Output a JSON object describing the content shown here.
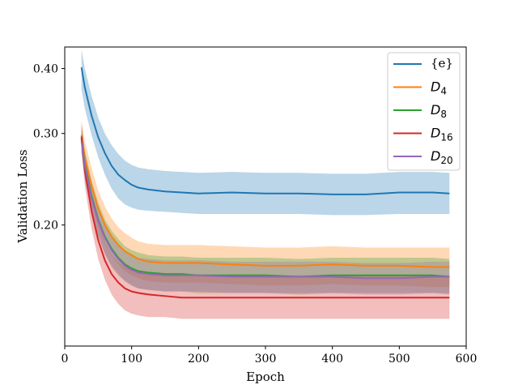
{
  "chart_data": {
    "type": "line",
    "xlabel": "Epoch",
    "ylabel": "Validation Loss",
    "xlim": [
      0,
      600
    ],
    "ylim": [
      0.117,
      0.44
    ],
    "y_scale": "log",
    "x_ticks": [
      0,
      100,
      200,
      300,
      400,
      500,
      600
    ],
    "y_ticks": [
      0.2,
      0.3,
      0.4
    ],
    "y_tick_labels": [
      "0.20",
      "0.30",
      "0.40"
    ],
    "legend_position": "top-right",
    "grid": false,
    "x": [
      25,
      30,
      40,
      50,
      60,
      70,
      80,
      90,
      100,
      110,
      125,
      150,
      175,
      200,
      250,
      300,
      350,
      400,
      450,
      500,
      550,
      575
    ],
    "series": [
      {
        "name": "{e}",
        "color": "#1f77b4",
        "mean": [
          0.402,
          0.368,
          0.325,
          0.295,
          0.275,
          0.26,
          0.25,
          0.244,
          0.239,
          0.236,
          0.234,
          0.232,
          0.231,
          0.23,
          0.231,
          0.23,
          0.23,
          0.229,
          0.229,
          0.231,
          0.231,
          0.23
        ],
        "lower": [
          0.365,
          0.335,
          0.298,
          0.27,
          0.25,
          0.235,
          0.225,
          0.219,
          0.216,
          0.214,
          0.213,
          0.212,
          0.211,
          0.21,
          0.21,
          0.21,
          0.21,
          0.209,
          0.209,
          0.21,
          0.21,
          0.21
        ],
        "upper": [
          0.435,
          0.4,
          0.355,
          0.322,
          0.3,
          0.285,
          0.274,
          0.266,
          0.261,
          0.258,
          0.256,
          0.254,
          0.253,
          0.252,
          0.253,
          0.252,
          0.252,
          0.251,
          0.251,
          0.253,
          0.253,
          0.252
        ]
      },
      {
        "name": "D_4",
        "label_base": "D",
        "label_sub": "4",
        "color": "#ff7f0e",
        "mean": [
          0.298,
          0.27,
          0.238,
          0.215,
          0.2,
          0.19,
          0.183,
          0.178,
          0.175,
          0.172,
          0.17,
          0.169,
          0.169,
          0.169,
          0.168,
          0.167,
          0.167,
          0.168,
          0.167,
          0.167,
          0.166,
          0.166
        ],
        "lower": [
          0.28,
          0.252,
          0.22,
          0.198,
          0.184,
          0.175,
          0.168,
          0.163,
          0.16,
          0.158,
          0.156,
          0.155,
          0.155,
          0.155,
          0.154,
          0.153,
          0.153,
          0.154,
          0.153,
          0.153,
          0.152,
          0.152
        ],
        "upper": [
          0.318,
          0.29,
          0.258,
          0.233,
          0.217,
          0.206,
          0.198,
          0.193,
          0.189,
          0.186,
          0.184,
          0.183,
          0.183,
          0.183,
          0.182,
          0.181,
          0.181,
          0.182,
          0.181,
          0.181,
          0.181,
          0.181
        ]
      },
      {
        "name": "D_8",
        "label_base": "D",
        "label_sub": "8",
        "color": "#2ca02c",
        "mean": [
          0.293,
          0.262,
          0.228,
          0.205,
          0.19,
          0.18,
          0.173,
          0.168,
          0.165,
          0.163,
          0.162,
          0.161,
          0.161,
          0.16,
          0.16,
          0.16,
          0.159,
          0.16,
          0.16,
          0.16,
          0.16,
          0.159
        ],
        "lower": [
          0.276,
          0.246,
          0.212,
          0.19,
          0.176,
          0.166,
          0.16,
          0.156,
          0.153,
          0.151,
          0.15,
          0.149,
          0.149,
          0.148,
          0.148,
          0.148,
          0.147,
          0.148,
          0.148,
          0.148,
          0.148,
          0.147
        ],
        "upper": [
          0.31,
          0.278,
          0.244,
          0.221,
          0.205,
          0.195,
          0.188,
          0.182,
          0.179,
          0.177,
          0.175,
          0.174,
          0.174,
          0.173,
          0.173,
          0.173,
          0.172,
          0.173,
          0.173,
          0.173,
          0.173,
          0.172
        ]
      },
      {
        "name": "D_16",
        "label_base": "D",
        "label_sub": "16",
        "color": "#d62728",
        "mean": [
          0.296,
          0.255,
          0.213,
          0.187,
          0.171,
          0.161,
          0.155,
          0.151,
          0.149,
          0.148,
          0.147,
          0.146,
          0.145,
          0.145,
          0.145,
          0.145,
          0.145,
          0.145,
          0.145,
          0.145,
          0.145,
          0.145
        ],
        "lower": [
          0.278,
          0.238,
          0.197,
          0.172,
          0.157,
          0.147,
          0.141,
          0.137,
          0.135,
          0.134,
          0.133,
          0.133,
          0.132,
          0.132,
          0.132,
          0.132,
          0.132,
          0.132,
          0.132,
          0.132,
          0.132,
          0.132
        ],
        "upper": [
          0.315,
          0.273,
          0.23,
          0.203,
          0.186,
          0.176,
          0.17,
          0.166,
          0.164,
          0.163,
          0.162,
          0.161,
          0.16,
          0.16,
          0.16,
          0.16,
          0.16,
          0.16,
          0.16,
          0.16,
          0.16,
          0.16
        ]
      },
      {
        "name": "D_20",
        "label_base": "D",
        "label_sub": "20",
        "color": "#9467bd",
        "mean": [
          0.29,
          0.26,
          0.226,
          0.204,
          0.189,
          0.179,
          0.172,
          0.167,
          0.164,
          0.162,
          0.161,
          0.16,
          0.16,
          0.16,
          0.159,
          0.159,
          0.159,
          0.159,
          0.158,
          0.158,
          0.159,
          0.159
        ],
        "lower": [
          0.274,
          0.245,
          0.212,
          0.191,
          0.176,
          0.167,
          0.161,
          0.156,
          0.153,
          0.151,
          0.15,
          0.149,
          0.149,
          0.149,
          0.148,
          0.148,
          0.148,
          0.148,
          0.147,
          0.147,
          0.148,
          0.148
        ],
        "upper": [
          0.306,
          0.275,
          0.24,
          0.217,
          0.202,
          0.191,
          0.184,
          0.178,
          0.175,
          0.173,
          0.172,
          0.171,
          0.171,
          0.171,
          0.17,
          0.17,
          0.17,
          0.17,
          0.169,
          0.169,
          0.17,
          0.17
        ]
      }
    ]
  }
}
